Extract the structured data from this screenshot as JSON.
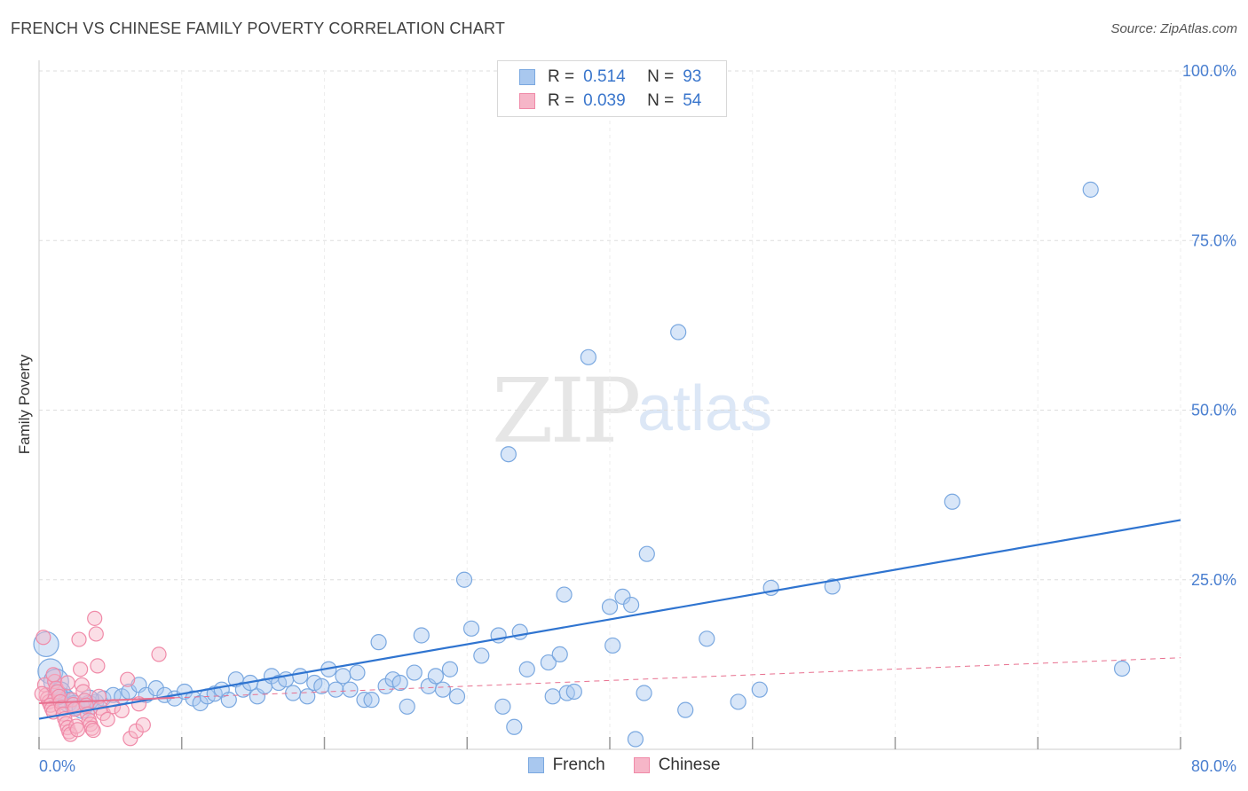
{
  "title": "FRENCH VS CHINESE FAMILY POVERTY CORRELATION CHART",
  "source": "Source: ZipAtlas.com",
  "watermark": {
    "zip": "ZIP",
    "atlas": "atlas"
  },
  "colors": {
    "french_fill": "#a9c8ef",
    "french_stroke": "#7aa8e0",
    "french_line": "#2f74d0",
    "chinese_fill": "#f6b6c8",
    "chinese_stroke": "#f08aa8",
    "chinese_line": "#e8708f",
    "grid": "#dddddd",
    "tick_text": "#4a7fd0"
  },
  "legend": {
    "rows": [
      {
        "r_label": "R =",
        "r_value": "0.514",
        "n_label": "N =",
        "n_value": "93"
      },
      {
        "r_label": "R =",
        "r_value": "0.039",
        "n_label": "N =",
        "n_value": "54"
      }
    ]
  },
  "bottom_legend": [
    "French",
    "Chinese"
  ],
  "chart_data": {
    "type": "scatter",
    "title": "FRENCH VS CHINESE FAMILY POVERTY CORRELATION CHART",
    "xlabel": "",
    "ylabel": "Family Poverty",
    "xlim": [
      0,
      80
    ],
    "ylim": [
      0,
      100
    ],
    "x_tick_labels": [
      "0.0%",
      "80.0%"
    ],
    "y_tick_labels": [
      "25.0%",
      "50.0%",
      "75.0%",
      "100.0%"
    ],
    "y_ticks": [
      25,
      50,
      75,
      100
    ],
    "legend_position": "top-center",
    "series": [
      {
        "name": "French",
        "trend": {
          "x": [
            0,
            80
          ],
          "y": [
            4.5,
            33.8
          ]
        },
        "points": [
          [
            0.5,
            15.5
          ],
          [
            0.8,
            11.5
          ],
          [
            1.2,
            10.0
          ],
          [
            1.5,
            8.5
          ],
          [
            1.8,
            7.5
          ],
          [
            2.0,
            7.0
          ],
          [
            2.5,
            6.5
          ],
          [
            3.0,
            6.0
          ],
          [
            3.5,
            6.5
          ],
          [
            4.0,
            7.0
          ],
          [
            4.5,
            7.5
          ],
          [
            5.2,
            8.0
          ],
          [
            5.8,
            7.8
          ],
          [
            6.3,
            8.5
          ],
          [
            7.0,
            9.5
          ],
          [
            7.5,
            8.0
          ],
          [
            8.2,
            9.0
          ],
          [
            8.8,
            8.0
          ],
          [
            9.5,
            7.5
          ],
          [
            10.2,
            8.5
          ],
          [
            10.8,
            7.5
          ],
          [
            11.3,
            6.8
          ],
          [
            11.8,
            7.8
          ],
          [
            12.3,
            8.2
          ],
          [
            12.8,
            8.8
          ],
          [
            13.3,
            7.3
          ],
          [
            13.8,
            10.3
          ],
          [
            14.3,
            8.8
          ],
          [
            14.8,
            9.8
          ],
          [
            15.3,
            7.8
          ],
          [
            15.8,
            9.3
          ],
          [
            16.3,
            10.8
          ],
          [
            16.8,
            9.8
          ],
          [
            17.3,
            10.3
          ],
          [
            17.8,
            8.3
          ],
          [
            18.3,
            10.8
          ],
          [
            18.8,
            7.8
          ],
          [
            19.3,
            9.8
          ],
          [
            19.8,
            9.3
          ],
          [
            20.3,
            11.8
          ],
          [
            20.8,
            8.8
          ],
          [
            21.3,
            10.8
          ],
          [
            21.8,
            8.8
          ],
          [
            22.3,
            11.3
          ],
          [
            22.8,
            7.3
          ],
          [
            23.3,
            7.3
          ],
          [
            23.8,
            15.8
          ],
          [
            24.3,
            9.3
          ],
          [
            24.8,
            10.3
          ],
          [
            25.3,
            9.8
          ],
          [
            25.8,
            6.3
          ],
          [
            26.3,
            11.3
          ],
          [
            26.8,
            16.8
          ],
          [
            27.3,
            9.3
          ],
          [
            27.8,
            10.8
          ],
          [
            28.3,
            8.8
          ],
          [
            28.8,
            11.8
          ],
          [
            29.3,
            7.8
          ],
          [
            29.8,
            25.0
          ],
          [
            30.3,
            17.8
          ],
          [
            31.0,
            13.8
          ],
          [
            32.2,
            16.8
          ],
          [
            32.5,
            6.3
          ],
          [
            32.9,
            43.5
          ],
          [
            33.3,
            3.3
          ],
          [
            33.7,
            17.3
          ],
          [
            34.2,
            11.8
          ],
          [
            35.7,
            12.8
          ],
          [
            36.0,
            7.8
          ],
          [
            36.5,
            14.0
          ],
          [
            36.8,
            22.8
          ],
          [
            37.0,
            8.3
          ],
          [
            37.5,
            8.5
          ],
          [
            38.5,
            57.8
          ],
          [
            40.0,
            21.0
          ],
          [
            40.2,
            15.3
          ],
          [
            40.9,
            22.5
          ],
          [
            41.5,
            21.3
          ],
          [
            41.8,
            1.5
          ],
          [
            42.4,
            8.3
          ],
          [
            42.6,
            28.8
          ],
          [
            44.8,
            61.5
          ],
          [
            45.3,
            5.8
          ],
          [
            46.8,
            16.3
          ],
          [
            49.0,
            7.0
          ],
          [
            50.5,
            8.8
          ],
          [
            51.3,
            23.8
          ],
          [
            55.6,
            24.0
          ],
          [
            64.0,
            36.5
          ],
          [
            73.7,
            82.5
          ],
          [
            75.9,
            11.9
          ],
          [
            1.3,
            8.0
          ],
          [
            3.5,
            7.3
          ]
        ]
      },
      {
        "name": "Chinese",
        "trend": {
          "x": [
            0,
            80
          ],
          "y": [
            6.8,
            13.5
          ]
        },
        "points": [
          [
            0.3,
            16.5
          ],
          [
            0.4,
            9.5
          ],
          [
            0.5,
            8.0
          ],
          [
            0.6,
            7.5
          ],
          [
            0.7,
            7.0
          ],
          [
            0.8,
            6.5
          ],
          [
            0.9,
            6.0
          ],
          [
            1.0,
            5.5
          ],
          [
            1.1,
            10.0
          ],
          [
            1.2,
            9.0
          ],
          [
            1.3,
            8.5
          ],
          [
            1.4,
            7.8
          ],
          [
            1.5,
            7.0
          ],
          [
            1.6,
            6.2
          ],
          [
            1.7,
            5.2
          ],
          [
            1.8,
            4.5
          ],
          [
            1.9,
            3.8
          ],
          [
            2.0,
            3.2
          ],
          [
            2.1,
            2.6
          ],
          [
            2.2,
            2.2
          ],
          [
            2.3,
            7.3
          ],
          [
            2.4,
            6.6
          ],
          [
            2.5,
            5.9
          ],
          [
            2.6,
            3.4
          ],
          [
            2.7,
            2.9
          ],
          [
            2.8,
            16.2
          ],
          [
            2.9,
            11.8
          ],
          [
            3.0,
            9.5
          ],
          [
            3.1,
            8.5
          ],
          [
            3.2,
            7.2
          ],
          [
            3.3,
            6.5
          ],
          [
            3.4,
            5.2
          ],
          [
            3.5,
            4.3
          ],
          [
            3.6,
            3.7
          ],
          [
            3.7,
            3.1
          ],
          [
            3.8,
            2.8
          ],
          [
            3.9,
            19.3
          ],
          [
            4.0,
            17.0
          ],
          [
            4.1,
            12.3
          ],
          [
            4.2,
            7.8
          ],
          [
            4.3,
            6.1
          ],
          [
            4.5,
            5.3
          ],
          [
            4.8,
            4.4
          ],
          [
            5.2,
            6.3
          ],
          [
            5.8,
            5.7
          ],
          [
            6.2,
            10.3
          ],
          [
            6.4,
            1.6
          ],
          [
            6.8,
            2.7
          ],
          [
            7.0,
            6.7
          ],
          [
            7.3,
            3.6
          ],
          [
            8.4,
            14.0
          ],
          [
            1.0,
            11.0
          ],
          [
            2.0,
            9.8
          ],
          [
            0.2,
            8.2
          ]
        ]
      }
    ]
  }
}
